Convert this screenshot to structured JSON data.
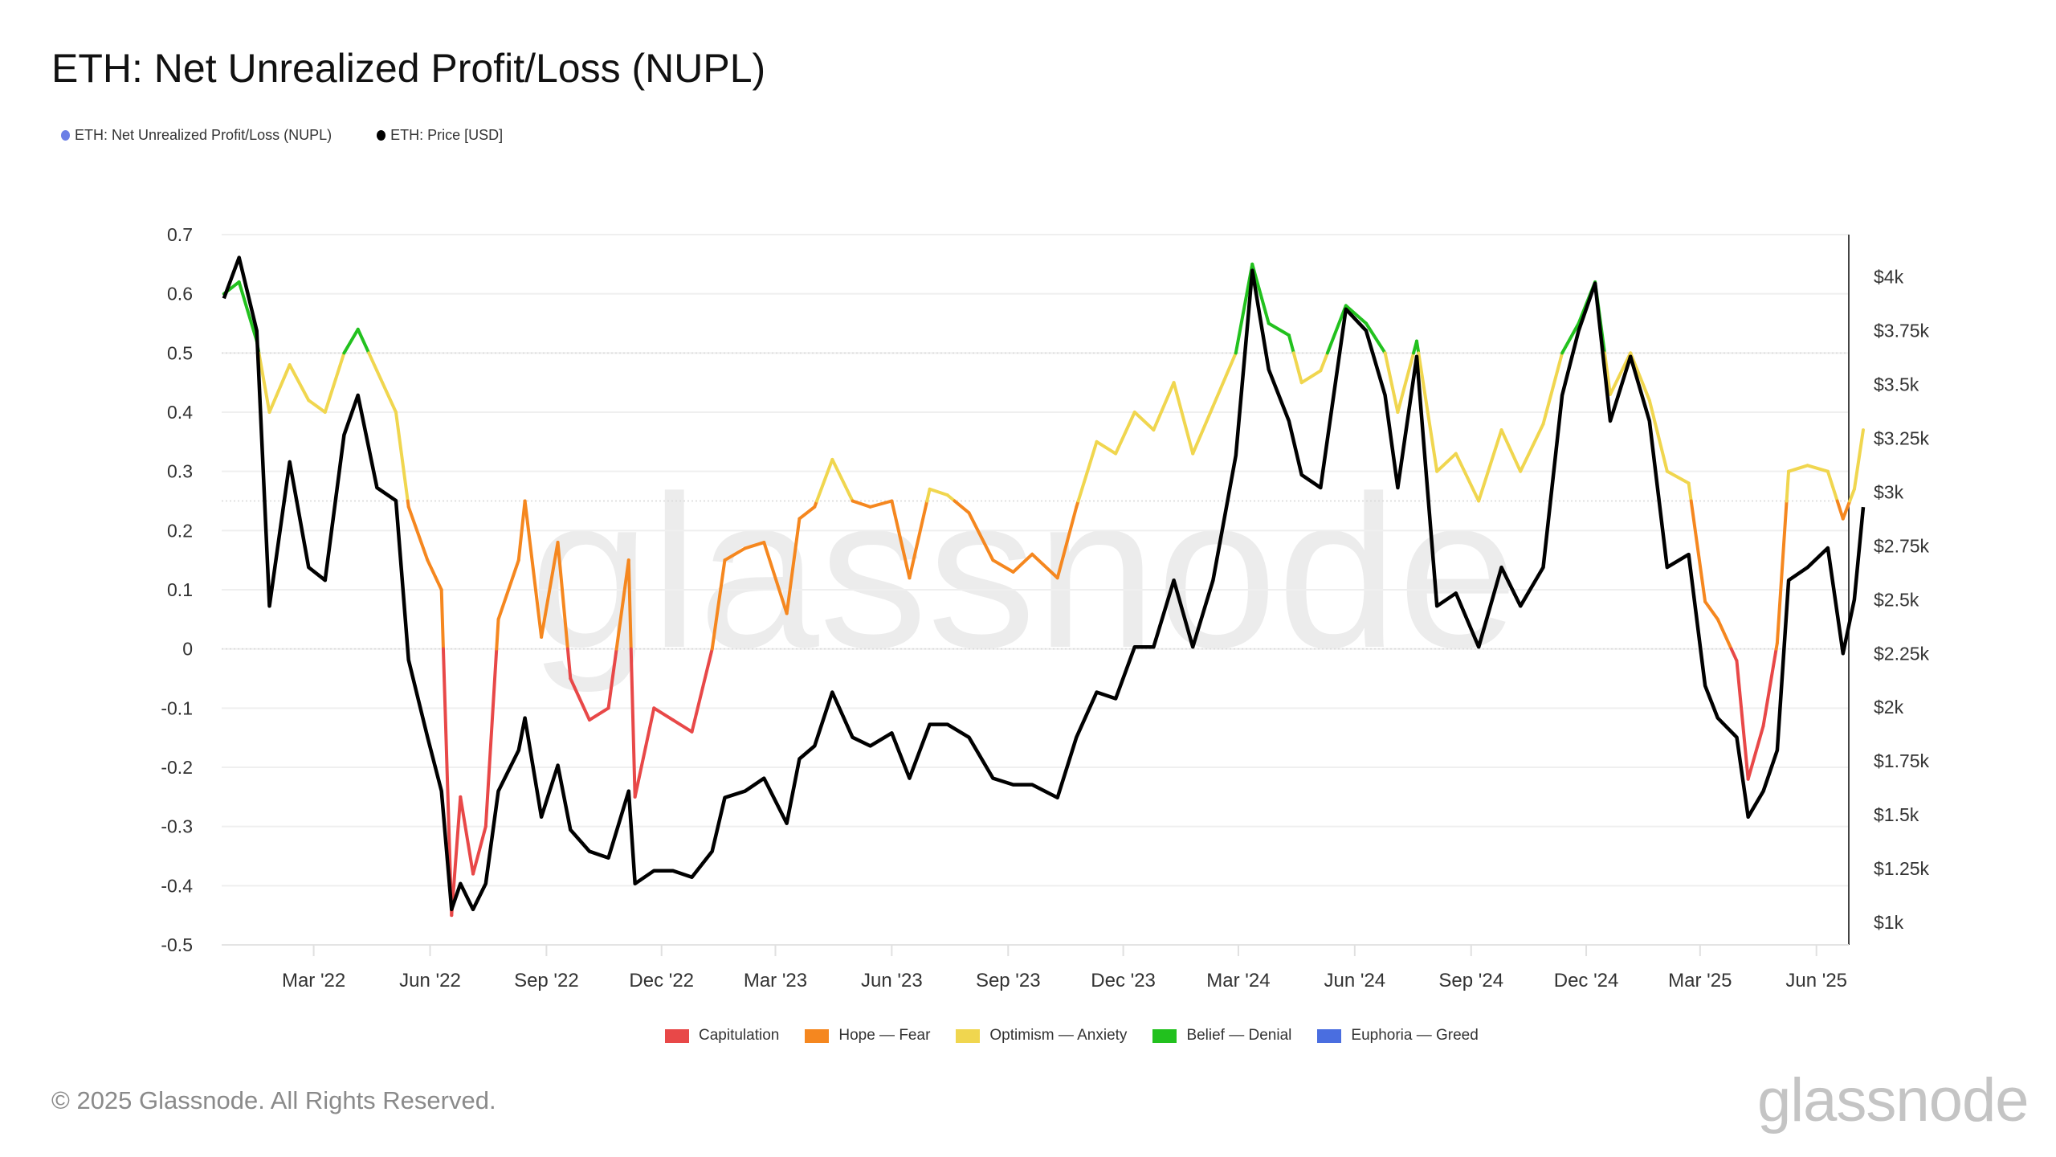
{
  "title": "ETH: Net Unrealized Profit/Loss (NUPL)",
  "footer": "© 2025 Glassnode. All Rights Reserved.",
  "logo": "glassnode",
  "watermark": "glassnode",
  "chart_data": {
    "type": "line",
    "title": "ETH: Net Unrealized Profit/Loss (NUPL)",
    "legend_top": [
      {
        "name": "ETH: Net Unrealized Profit/Loss (NUPL)",
        "color": "#6b7fe6"
      },
      {
        "name": "ETH: Price [USD]",
        "color": "#000000"
      }
    ],
    "zones_legend": [
      {
        "name": "Capitulation",
        "color": "#e84848",
        "range": [
          -1,
          0
        ]
      },
      {
        "name": "Hope — Fear",
        "color": "#f5871f",
        "range": [
          0,
          0.25
        ]
      },
      {
        "name": "Optimism — Anxiety",
        "color": "#f0d64f",
        "range": [
          0.25,
          0.5
        ]
      },
      {
        "name": "Belief — Denial",
        "color": "#22c11e",
        "range": [
          0.5,
          0.75
        ]
      },
      {
        "name": "Euphoria — Greed",
        "color": "#4a6ee0",
        "range": [
          0.75,
          1
        ]
      }
    ],
    "x_ticks": [
      "Mar '22",
      "Jun '22",
      "Sep '22",
      "Dec '22",
      "Mar '23",
      "Jun '23",
      "Sep '23",
      "Dec '23",
      "Mar '24",
      "Jun '24",
      "Sep '24",
      "Dec '24",
      "Mar '25",
      "Jun '25"
    ],
    "y_left": {
      "ylim": [
        -0.5,
        0.7
      ],
      "ticks": [
        "0.7",
        "0.6",
        "0.5",
        "0.4",
        "0.3",
        "0.2",
        "0.1",
        "0",
        "-0.1",
        "-0.2",
        "-0.3",
        "-0.4",
        "-0.5"
      ]
    },
    "y_right": {
      "ylim": [
        900,
        4200
      ],
      "ticks": [
        "$4k",
        "$3.75k",
        "$3.5k",
        "$3.25k",
        "$3k",
        "$2.75k",
        "$2.5k",
        "$2.25k",
        "$2k",
        "$1.75k",
        "$1.5k",
        "$1.25k",
        "$1k"
      ]
    },
    "grid": true,
    "x": [
      "2021-12-20",
      "2022-01-01",
      "2022-01-15",
      "2022-01-25",
      "2022-02-10",
      "2022-02-25",
      "2022-03-10",
      "2022-03-25",
      "2022-04-05",
      "2022-04-20",
      "2022-05-05",
      "2022-05-15",
      "2022-05-30",
      "2022-06-10",
      "2022-06-18",
      "2022-06-25",
      "2022-07-05",
      "2022-07-15",
      "2022-07-25",
      "2022-08-10",
      "2022-08-15",
      "2022-08-28",
      "2022-09-10",
      "2022-09-20",
      "2022-10-05",
      "2022-10-20",
      "2022-11-05",
      "2022-11-10",
      "2022-11-25",
      "2022-12-10",
      "2022-12-25",
      "2023-01-10",
      "2023-01-20",
      "2023-02-05",
      "2023-02-20",
      "2023-03-10",
      "2023-03-20",
      "2023-04-01",
      "2023-04-15",
      "2023-05-01",
      "2023-05-15",
      "2023-06-01",
      "2023-06-15",
      "2023-07-01",
      "2023-07-15",
      "2023-08-01",
      "2023-08-20",
      "2023-09-05",
      "2023-09-20",
      "2023-10-10",
      "2023-10-25",
      "2023-11-10",
      "2023-11-25",
      "2023-12-10",
      "2023-12-25",
      "2024-01-10",
      "2024-01-25",
      "2024-02-10",
      "2024-02-28",
      "2024-03-12",
      "2024-03-25",
      "2024-04-10",
      "2024-04-20",
      "2024-05-05",
      "2024-05-25",
      "2024-06-10",
      "2024-06-25",
      "2024-07-05",
      "2024-07-20",
      "2024-08-05",
      "2024-08-20",
      "2024-09-07",
      "2024-09-25",
      "2024-10-10",
      "2024-10-28",
      "2024-11-12",
      "2024-11-25",
      "2024-12-08",
      "2024-12-20",
      "2025-01-05",
      "2025-01-20",
      "2025-02-03",
      "2025-02-20",
      "2025-03-05",
      "2025-03-15",
      "2025-03-30",
      "2025-04-08",
      "2025-04-20",
      "2025-05-01",
      "2025-05-10",
      "2025-05-25",
      "2025-06-10",
      "2025-06-22",
      "2025-07-01",
      "2025-07-08"
    ],
    "series": [
      {
        "name": "ETH: Net Unrealized Profit/Loss (NUPL)",
        "axis": "left",
        "values": [
          0.6,
          0.62,
          0.52,
          0.4,
          0.48,
          0.42,
          0.4,
          0.5,
          0.54,
          0.47,
          0.4,
          0.24,
          0.15,
          0.1,
          -0.45,
          -0.25,
          -0.38,
          -0.3,
          0.05,
          0.15,
          0.25,
          0.02,
          0.18,
          -0.05,
          -0.12,
          -0.1,
          0.15,
          -0.25,
          -0.1,
          -0.12,
          -0.14,
          0.0,
          0.15,
          0.17,
          0.18,
          0.06,
          0.22,
          0.24,
          0.32,
          0.25,
          0.24,
          0.25,
          0.12,
          0.27,
          0.26,
          0.23,
          0.15,
          0.13,
          0.16,
          0.12,
          0.24,
          0.35,
          0.33,
          0.4,
          0.37,
          0.45,
          0.33,
          0.41,
          0.5,
          0.65,
          0.55,
          0.53,
          0.45,
          0.47,
          0.58,
          0.55,
          0.5,
          0.4,
          0.52,
          0.3,
          0.33,
          0.25,
          0.37,
          0.3,
          0.38,
          0.5,
          0.55,
          0.62,
          0.43,
          0.5,
          0.42,
          0.3,
          0.28,
          0.08,
          0.05,
          -0.02,
          -0.22,
          -0.13,
          0.01,
          0.3,
          0.31,
          0.3,
          0.22,
          0.27,
          0.37
        ]
      },
      {
        "name": "ETH: Price [USD]",
        "axis": "right",
        "values": [
          3900,
          4090,
          3750,
          2470,
          3140,
          2650,
          2590,
          3265,
          3450,
          3020,
          2960,
          2220,
          1860,
          1610,
          1060,
          1180,
          1060,
          1180,
          1610,
          1800,
          1950,
          1490,
          1730,
          1430,
          1330,
          1300,
          1610,
          1180,
          1240,
          1240,
          1210,
          1330,
          1580,
          1610,
          1670,
          1460,
          1760,
          1820,
          2070,
          1860,
          1820,
          1880,
          1670,
          1920,
          1920,
          1860,
          1670,
          1640,
          1640,
          1580,
          1860,
          2070,
          2040,
          2280,
          2280,
          2590,
          2280,
          2590,
          3170,
          4030,
          3570,
          3330,
          3080,
          3020,
          3850,
          3750,
          3450,
          3020,
          3630,
          2470,
          2530,
          2280,
          2650,
          2470,
          2650,
          3450,
          3750,
          3970,
          3330,
          3630,
          3330,
          2650,
          2710,
          2100,
          1950,
          1860,
          1490,
          1610,
          1800,
          2590,
          2650,
          2740,
          2250,
          2500,
          2930
        ]
      }
    ]
  }
}
